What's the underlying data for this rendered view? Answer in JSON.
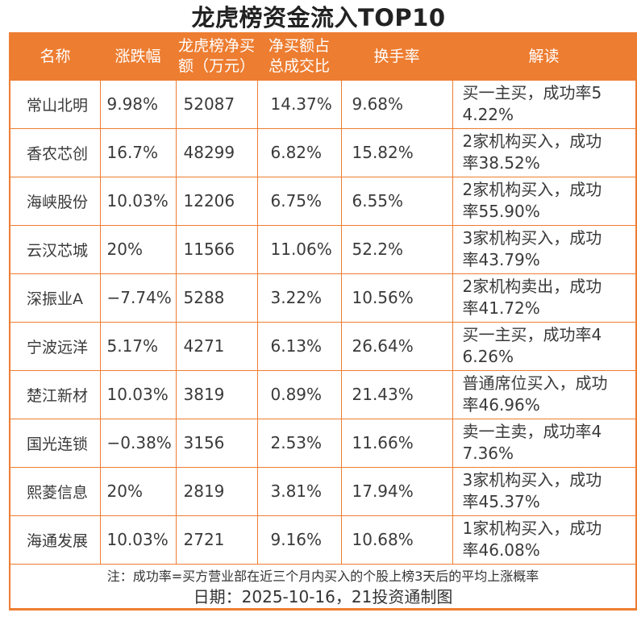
{
  "title": "龙虎榜资金流入TOP10",
  "colors": {
    "accent_orange": "#ED7D31",
    "header_text": "#FFFFFF",
    "body_text": "#3A3A3A"
  },
  "chart_data": {
    "type": "table",
    "title": "龙虎榜资金流入TOP10",
    "columns": [
      "名称",
      "涨跌幅",
      "龙虎榜净买额（万元）",
      "净买额占总成交比",
      "换手率",
      "解读"
    ],
    "header_labels": [
      "名称",
      "涨跌幅",
      "龙虎榜净买\n额（万元）",
      "净买额占\n总成交比",
      "换手率",
      "解读"
    ],
    "rows": [
      [
        "常山北明",
        "9.98%",
        "52087",
        "14.37%",
        "9.68%",
        "买一主买，成功率5\n4.22%"
      ],
      [
        "香农芯创",
        "16.7%",
        "48299",
        "6.82%",
        "15.82%",
        "2家机构买入，成功\n率38.52%"
      ],
      [
        "海峡股份",
        "10.03%",
        "12206",
        "6.75%",
        "6.55%",
        "2家机构买入，成功\n率55.90%"
      ],
      [
        "云汉芯城",
        "20%",
        "11566",
        "11.06%",
        "52.2%",
        "3家机构买入，成功\n率43.79%"
      ],
      [
        "深振业A",
        "−7.74%",
        "5288",
        "3.22%",
        "10.56%",
        "2家机构卖出，成功\n率41.72%"
      ],
      [
        "宁波远洋",
        "5.17%",
        "4271",
        "6.13%",
        "26.64%",
        "买一主买，成功率4\n6.26%"
      ],
      [
        "楚江新材",
        "10.03%",
        "3819",
        "0.89%",
        "21.43%",
        "普通席位买入，成功\n率46.96%"
      ],
      [
        "国光连锁",
        "−0.38%",
        "3156",
        "2.53%",
        "11.66%",
        "卖一主卖，成功率4\n7.36%"
      ],
      [
        "熙菱信息",
        "20%",
        "2819",
        "3.81%",
        "17.94%",
        "3家机构买入，成功\n率45.37%"
      ],
      [
        "海通发展",
        "10.03%",
        "2721",
        "9.16%",
        "10.68%",
        "1家机构买入，成功\n率46.08%"
      ]
    ],
    "note": "注：成功率=买方营业部在近三个月内买入的个股上榜3天后的平均上涨概率",
    "caption": "日期：2025-10-16，21投资通制图"
  }
}
